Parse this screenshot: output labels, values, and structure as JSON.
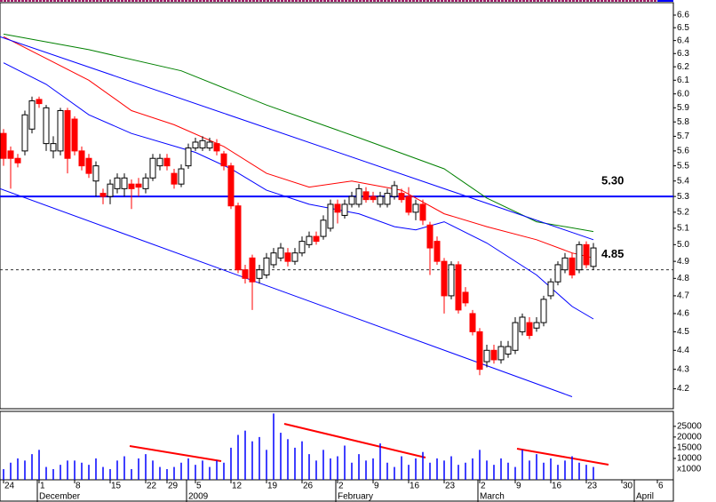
{
  "chart_data": {
    "type": "candlestick",
    "log_y": true,
    "ylim": [
      4.1,
      6.7
    ],
    "yticks": [
      4.2,
      4.3,
      4.4,
      4.5,
      4.6,
      4.7,
      4.8,
      4.9,
      {
        "value": 5,
        "label": "5.0"
      },
      5.1,
      5.2,
      5.3,
      5.4,
      5.5,
      5.6,
      5.7,
      5.8,
      5.9,
      {
        "value": 6,
        "label": "6.0"
      },
      6.1,
      6.2,
      6.3,
      6.4,
      6.5,
      6.6
    ],
    "xlim": [
      -0.5,
      94.25
    ],
    "xticks": [
      {
        "value": 0,
        "label": "24"
      },
      {
        "value": 5,
        "label": "1"
      },
      {
        "value": 10,
        "label": "8"
      },
      {
        "value": 15,
        "label": "15"
      },
      {
        "value": 20,
        "label": "22"
      },
      {
        "value": 23,
        "label": "29"
      },
      {
        "value": 27,
        "label": "5"
      },
      {
        "value": 32,
        "label": "12"
      },
      {
        "value": 37,
        "label": "19"
      },
      {
        "value": 42,
        "label": "26"
      },
      {
        "value": 47,
        "label": "2"
      },
      {
        "value": 52,
        "label": "9"
      },
      {
        "value": 57,
        "label": "16"
      },
      {
        "value": 62,
        "label": "23"
      },
      {
        "value": 67,
        "label": "2"
      },
      {
        "value": 72,
        "label": "9"
      },
      {
        "value": 77,
        "label": "16"
      },
      {
        "value": 82,
        "label": "23"
      },
      {
        "value": 87,
        "label": "30"
      },
      {
        "value": 92,
        "label": "6"
      }
    ],
    "month_ticks": [
      {
        "value": 5,
        "label": "December"
      },
      {
        "value": 26,
        "label": "2009"
      },
      {
        "value": 47,
        "label": "February"
      },
      {
        "value": 67,
        "label": "March"
      },
      {
        "value": 89,
        "label": "April"
      }
    ],
    "up_color": "#ffffff",
    "down_color": "#ff0000",
    "open": [
      5.72,
      5.6,
      5.55,
      5.6,
      5.75,
      5.96,
      5.65,
      5.6,
      5.6,
      5.88,
      5.82,
      5.6,
      5.55,
      5.4,
      5.32,
      5.3,
      5.35,
      5.35,
      5.38,
      5.38,
      5.35,
      5.42,
      5.5,
      5.55,
      5.45,
      5.38,
      5.5,
      5.62,
      5.62,
      5.62,
      5.65,
      5.58,
      5.5,
      5.24,
      4.85,
      4.92,
      4.8,
      4.82,
      4.88,
      4.92,
      4.95,
      4.9,
      4.95,
      5.0,
      5.05,
      5.05,
      5.1,
      5.25,
      5.18,
      5.25,
      5.25,
      5.33,
      5.3,
      5.25,
      5.25,
      5.3,
      5.32,
      5.3,
      5.2,
      5.25,
      5.12,
      5.02,
      4.9,
      4.7,
      4.88,
      4.72,
      4.6,
      4.5,
      4.34,
      4.4,
      4.35,
      4.38,
      4.4,
      4.5,
      4.55,
      4.52,
      4.55,
      4.7,
      4.78,
      4.85,
      4.92,
      4.85,
      5.0,
      4.87
    ],
    "high": [
      5.75,
      5.63,
      5.58,
      5.88,
      5.98,
      5.98,
      5.92,
      5.7,
      5.9,
      5.9,
      5.84,
      5.63,
      5.58,
      5.53,
      5.35,
      5.41,
      5.45,
      5.45,
      5.41,
      5.42,
      5.45,
      5.58,
      5.58,
      5.58,
      5.48,
      5.51,
      5.65,
      5.69,
      5.7,
      5.69,
      5.68,
      5.6,
      5.52,
      5.26,
      4.88,
      4.94,
      4.88,
      4.95,
      4.98,
      5.01,
      4.98,
      4.98,
      5.05,
      5.08,
      5.08,
      5.18,
      5.28,
      5.28,
      5.28,
      5.33,
      5.38,
      5.36,
      5.33,
      5.33,
      5.35,
      5.4,
      5.35,
      5.36,
      5.28,
      5.28,
      5.14,
      5.05,
      4.92,
      4.9,
      4.9,
      4.75,
      4.62,
      4.52,
      4.43,
      4.43,
      4.45,
      4.45,
      4.58,
      4.6,
      4.58,
      4.58,
      4.7,
      4.8,
      4.9,
      4.95,
      4.95,
      5.02,
      5.02,
      5.01
    ],
    "low": [
      5.5,
      5.35,
      5.49,
      5.57,
      5.72,
      5.9,
      5.6,
      5.55,
      5.57,
      5.45,
      5.57,
      5.47,
      5.42,
      5.3,
      5.25,
      5.25,
      5.32,
      5.3,
      5.22,
      5.3,
      5.32,
      5.4,
      5.47,
      5.47,
      5.35,
      5.36,
      5.48,
      5.6,
      5.6,
      5.6,
      5.57,
      5.47,
      5.22,
      4.83,
      4.77,
      4.62,
      4.77,
      4.8,
      4.86,
      4.9,
      4.87,
      4.88,
      4.93,
      4.98,
      5.0,
      5.03,
      5.08,
      5.13,
      5.16,
      5.23,
      5.23,
      5.26,
      5.26,
      5.23,
      5.23,
      5.28,
      5.26,
      5.18,
      5.15,
      5.12,
      4.82,
      4.88,
      4.6,
      4.68,
      4.6,
      4.64,
      4.48,
      4.27,
      4.31,
      4.33,
      4.33,
      4.36,
      4.38,
      4.48,
      4.46,
      4.5,
      4.53,
      4.68,
      4.76,
      4.83,
      4.8,
      4.83,
      4.86,
      4.85
    ],
    "close": [
      5.55,
      5.55,
      5.52,
      5.85,
      5.95,
      5.93,
      5.9,
      5.65,
      5.88,
      5.55,
      5.6,
      5.5,
      5.45,
      5.5,
      5.3,
      5.38,
      5.42,
      5.42,
      5.35,
      5.36,
      5.42,
      5.55,
      5.55,
      5.5,
      5.38,
      5.48,
      5.62,
      5.66,
      5.67,
      5.66,
      5.6,
      5.5,
      5.24,
      4.85,
      4.8,
      4.78,
      4.85,
      4.92,
      4.95,
      4.98,
      4.9,
      4.95,
      5.02,
      5.05,
      5.02,
      5.15,
      5.25,
      5.2,
      5.25,
      5.3,
      5.35,
      5.28,
      5.28,
      5.3,
      5.32,
      5.37,
      5.28,
      5.2,
      5.25,
      5.15,
      4.98,
      4.9,
      4.7,
      4.88,
      4.62,
      4.66,
      4.5,
      4.3,
      4.4,
      4.35,
      4.42,
      4.42,
      4.55,
      4.58,
      4.48,
      4.55,
      4.68,
      4.78,
      4.88,
      4.92,
      4.82,
      5.0,
      4.88,
      4.98
    ],
    "lines": [
      {
        "color": "#008000",
        "x": [
          0,
          12,
          25,
          37,
          50,
          62,
          68,
          75,
          83
        ],
        "values": [
          6.45,
          6.33,
          6.17,
          5.92,
          5.69,
          5.48,
          5.29,
          5.14,
          5.08
        ]
      },
      {
        "color": "#ff0000",
        "x": [
          0,
          12,
          18,
          24,
          31,
          37,
          43,
          49,
          56,
          62,
          68,
          75,
          80,
          83
        ],
        "values": [
          6.43,
          6.1,
          5.88,
          5.78,
          5.63,
          5.45,
          5.36,
          5.4,
          5.34,
          5.19,
          5.11,
          5.03,
          4.95,
          4.92
        ]
      },
      {
        "color": "#0000ff",
        "x": [
          0,
          6,
          12,
          18,
          27,
          32,
          37,
          43,
          50,
          55,
          58,
          62,
          68,
          75,
          80,
          83
        ],
        "values": [
          6.23,
          6.07,
          5.85,
          5.72,
          5.59,
          5.48,
          5.34,
          5.25,
          5.19,
          5.11,
          5.09,
          5.14,
          5.01,
          4.82,
          4.64,
          4.57
        ]
      },
      {
        "color": "#0000ff",
        "x": [
          -0.5,
          83
        ],
        "values": [
          6.43,
          5.03
        ]
      },
      {
        "color": "#0000ff",
        "x": [
          -0.5,
          80
        ],
        "values": [
          5.35,
          4.16
        ]
      }
    ],
    "hlines": [
      {
        "value": 5.3,
        "label": "5.30",
        "color": "#0000ff",
        "dashed": false
      },
      {
        "value": 4.85,
        "label": "4.85",
        "color": "#333333",
        "dashed": true
      }
    ],
    "volume": {
      "color": "#0000ff",
      "ylim": [
        0,
        32000
      ],
      "yticks": [
        10000,
        15000,
        20000,
        25000
      ],
      "unit_label": "x1000",
      "values": [
        5000,
        8000,
        10000,
        9000,
        12000,
        14000,
        6000,
        5000,
        7000,
        9000,
        9000,
        8000,
        7000,
        10000,
        6000,
        5000,
        9000,
        11000,
        5000,
        10000,
        12000,
        9000,
        6000,
        5000,
        6000,
        8000,
        10000,
        7000,
        9000,
        6000,
        9000,
        8000,
        15000,
        21000,
        23000,
        18000,
        20000,
        14000,
        31000,
        22000,
        19000,
        15000,
        18000,
        12000,
        9000,
        14000,
        10000,
        11000,
        16000,
        8000,
        12000,
        9000,
        10000,
        17000,
        8000,
        6000,
        11000,
        7000,
        10000,
        13000,
        8000,
        10000,
        9000,
        11000,
        7000,
        8000,
        10000,
        14000,
        9000,
        7000,
        10000,
        8000,
        6000,
        14000,
        9000,
        12000,
        8000,
        10000,
        7000,
        9000,
        11000,
        8000,
        7000,
        6000
      ]
    }
  }
}
